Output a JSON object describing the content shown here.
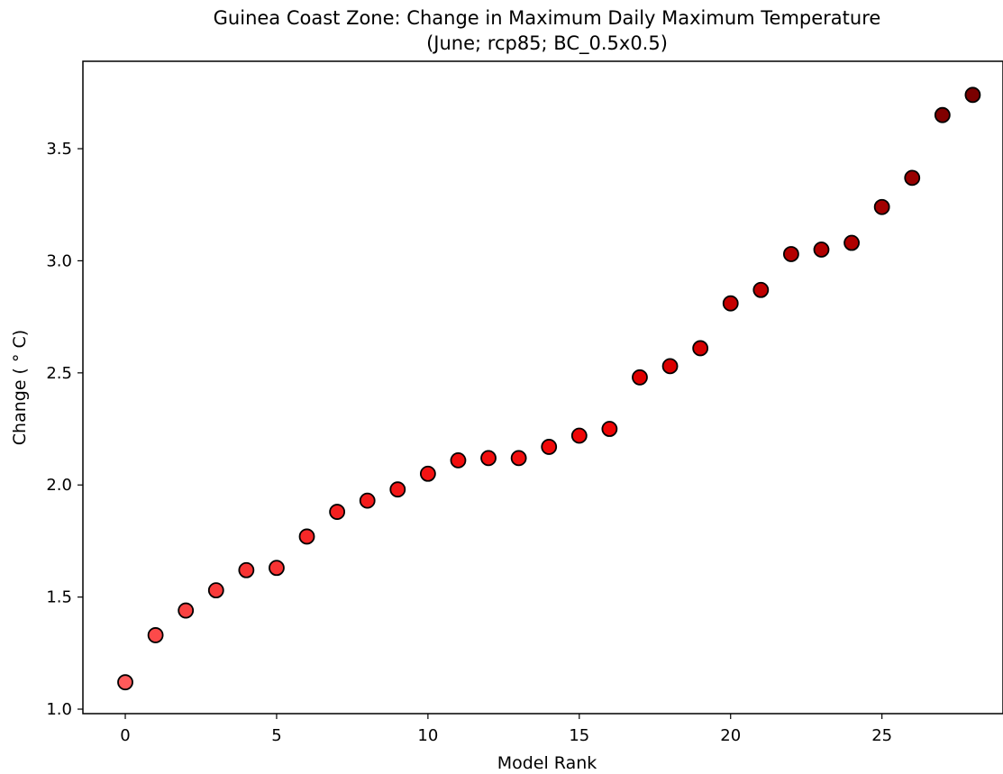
{
  "chart_data": {
    "type": "scatter",
    "title": "Guinea Coast Zone: Change in Maximum Daily Maximum Temperature",
    "subtitle": "(June; rcp85; BC_0.5x0.5)",
    "xlabel": "Model Rank",
    "ylabel": "Change ($^\\circ$C)",
    "ylabel_display": "Change ( ° C)",
    "xlim": [
      -1.4,
      29.0
    ],
    "ylim": [
      0.98,
      3.89
    ],
    "x_ticks": [
      0,
      5,
      10,
      15,
      20,
      25
    ],
    "x_tick_labels": [
      "0",
      "5",
      "10",
      "15",
      "20",
      "25"
    ],
    "y_ticks": [
      1.0,
      1.5,
      2.0,
      2.5,
      3.0,
      3.5
    ],
    "y_tick_labels": [
      "1.0",
      "1.5",
      "2.0",
      "2.5",
      "3.0",
      "3.5"
    ],
    "grid": false,
    "legend": "none",
    "marker_edge_color": "#000000",
    "color_scale": {
      "low": "#ff5a5a",
      "mid": "#ee0000",
      "high": "#7a0000"
    },
    "x": [
      0,
      1,
      2,
      3,
      4,
      5,
      6,
      7,
      8,
      9,
      10,
      11,
      12,
      13,
      14,
      15,
      16,
      17,
      18,
      19,
      20,
      21,
      22,
      23,
      24,
      25,
      26,
      27,
      28
    ],
    "y": [
      1.12,
      1.33,
      1.44,
      1.53,
      1.62,
      1.63,
      1.77,
      1.88,
      1.93,
      1.98,
      2.05,
      2.11,
      2.12,
      2.12,
      2.17,
      2.22,
      2.25,
      2.48,
      2.53,
      2.61,
      2.81,
      2.87,
      3.03,
      3.05,
      3.08,
      3.24,
      3.37,
      3.65,
      3.74
    ]
  }
}
